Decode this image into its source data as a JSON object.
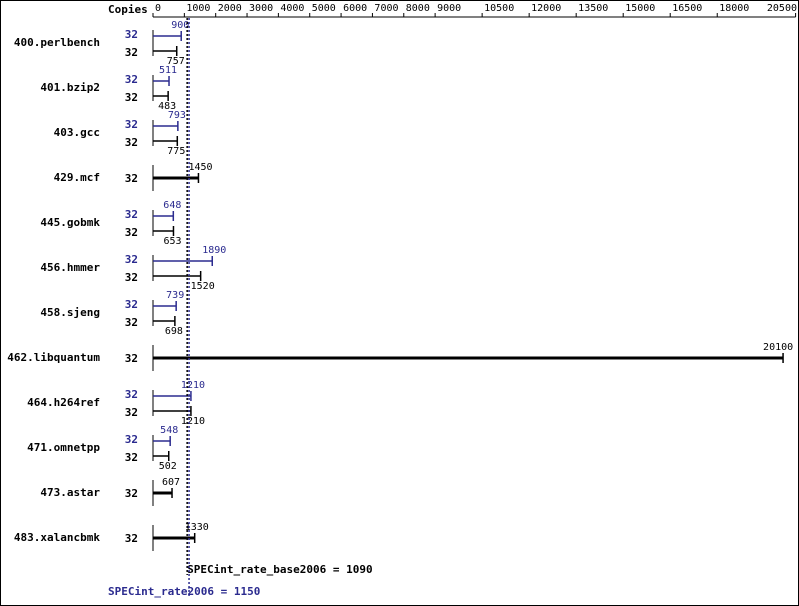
{
  "chart_data": {
    "type": "bar",
    "copies_label": "Copies",
    "categories": [
      "400.perlbench",
      "401.bzip2",
      "403.gcc",
      "429.mcf",
      "445.gobmk",
      "456.hmmer",
      "458.sjeng",
      "462.libquantum",
      "464.h264ref",
      "471.omnetpp",
      "473.astar",
      "483.xalancbmk"
    ],
    "series": [
      {
        "name": "SPECint_rate2006",
        "color": "#2b2b8f",
        "copies": [
          32,
          32,
          32,
          null,
          32,
          32,
          32,
          null,
          32,
          32,
          null,
          null
        ],
        "values": [
          900,
          511,
          793,
          null,
          648,
          1890,
          739,
          null,
          1210,
          548,
          null,
          null
        ]
      },
      {
        "name": "SPECint_rate_base2006",
        "color": "#000000",
        "copies": [
          32,
          32,
          32,
          32,
          32,
          32,
          32,
          32,
          32,
          32,
          32,
          32
        ],
        "values": [
          757,
          483,
          775,
          1450,
          653,
          1520,
          698,
          20100,
          1210,
          502,
          607,
          1330
        ]
      }
    ],
    "reference_lines": [
      {
        "label": "SPECint_rate_base2006 = 1090",
        "value": 1090,
        "color": "#000000"
      },
      {
        "label": "SPECint_rate2006 = 1150",
        "value": 1150,
        "color": "#2b2b8f"
      }
    ],
    "xlim": [
      0,
      20500
    ],
    "xticks": [
      0,
      1000,
      2000,
      3000,
      4000,
      5000,
      6000,
      7000,
      8000,
      9000,
      10500,
      12000,
      13500,
      15000,
      16500,
      18000,
      20500
    ]
  }
}
